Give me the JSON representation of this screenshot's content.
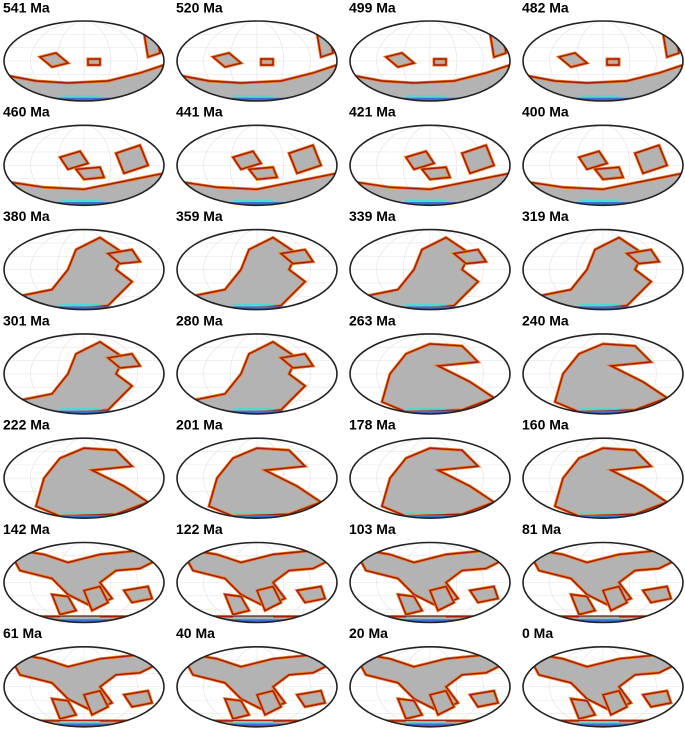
{
  "panels": [
    {
      "label": "541 Ma"
    },
    {
      "label": "520 Ma"
    },
    {
      "label": "499 Ma"
    },
    {
      "label": "482 Ma"
    },
    {
      "label": "460 Ma"
    },
    {
      "label": "441 Ma"
    },
    {
      "label": "421 Ma"
    },
    {
      "label": "400 Ma"
    },
    {
      "label": "380 Ma"
    },
    {
      "label": "359 Ma"
    },
    {
      "label": "339 Ma"
    },
    {
      "label": "319 Ma"
    },
    {
      "label": "301 Ma"
    },
    {
      "label": "280 Ma"
    },
    {
      "label": "263 Ma"
    },
    {
      "label": "240 Ma"
    },
    {
      "label": "222 Ma"
    },
    {
      "label": "201 Ma"
    },
    {
      "label": "178 Ma"
    },
    {
      "label": "160 Ma"
    },
    {
      "label": "142 Ma"
    },
    {
      "label": "122 Ma"
    },
    {
      "label": "103 Ma"
    },
    {
      "label": "81 Ma"
    },
    {
      "label": "61 Ma"
    },
    {
      "label": "40 Ma"
    },
    {
      "label": "20 Ma"
    },
    {
      "label": "0 Ma"
    }
  ]
}
